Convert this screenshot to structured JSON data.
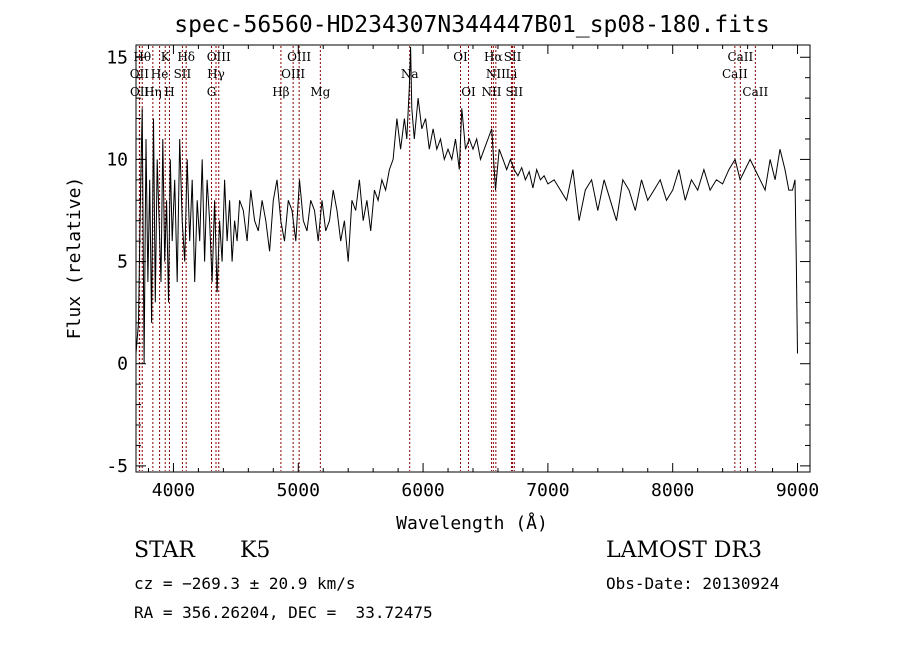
{
  "chart_data": {
    "type": "line",
    "title": "spec-56560-HD234307N344447B01_sp08-180.fits",
    "xlabel": "Wavelength (Å)",
    "ylabel": "Flux (relative)",
    "xlim": [
      3700,
      9100
    ],
    "ylim": [
      -5.3,
      15.6
    ],
    "x_ticks": [
      4000,
      5000,
      6000,
      7000,
      8000,
      9000
    ],
    "x_tick_labels": [
      "4000",
      "5000",
      "6000",
      "7000",
      "8000",
      "9000"
    ],
    "y_ticks": [
      -5,
      0,
      5,
      10,
      15
    ],
    "y_tick_labels": [
      "-5",
      "0",
      "5",
      "10",
      "15"
    ],
    "grid": false,
    "series": [
      {
        "name": "flux",
        "x": [
          3700,
          3720,
          3735,
          3750,
          3765,
          3780,
          3795,
          3810,
          3825,
          3840,
          3855,
          3870,
          3885,
          3900,
          3915,
          3930,
          3945,
          3960,
          3975,
          3990,
          4010,
          4030,
          4050,
          4070,
          4090,
          4110,
          4130,
          4150,
          4170,
          4190,
          4210,
          4230,
          4250,
          4270,
          4290,
          4310,
          4330,
          4350,
          4370,
          4390,
          4410,
          4430,
          4450,
          4470,
          4490,
          4510,
          4530,
          4560,
          4590,
          4620,
          4650,
          4680,
          4710,
          4740,
          4770,
          4800,
          4830,
          4860,
          4890,
          4920,
          4950,
          4980,
          5010,
          5040,
          5070,
          5100,
          5130,
          5160,
          5190,
          5220,
          5250,
          5280,
          5310,
          5340,
          5370,
          5400,
          5430,
          5460,
          5490,
          5520,
          5550,
          5580,
          5610,
          5640,
          5670,
          5700,
          5730,
          5760,
          5790,
          5820,
          5850,
          5870,
          5890,
          5900,
          5910,
          5930,
          5960,
          5990,
          6020,
          6050,
          6080,
          6110,
          6140,
          6170,
          6200,
          6230,
          6260,
          6290,
          6310,
          6340,
          6370,
          6400,
          6430,
          6460,
          6490,
          6520,
          6550,
          6565,
          6580,
          6610,
          6640,
          6670,
          6700,
          6730,
          6760,
          6790,
          6820,
          6850,
          6880,
          6910,
          6940,
          6970,
          7000,
          7050,
          7100,
          7150,
          7200,
          7250,
          7300,
          7350,
          7400,
          7450,
          7500,
          7550,
          7600,
          7650,
          7700,
          7750,
          7800,
          7850,
          7900,
          7950,
          8000,
          8050,
          8100,
          8150,
          8200,
          8250,
          8300,
          8350,
          8400,
          8450,
          8500,
          8540,
          8580,
          8620,
          8660,
          8700,
          8740,
          8780,
          8820,
          8860,
          8900,
          8930,
          8960,
          8980,
          8990,
          9000
        ],
        "values": [
          0.5,
          2,
          8,
          12.5,
          0,
          11,
          4,
          9,
          2,
          12,
          3,
          10,
          7,
          4,
          11,
          5,
          8,
          3,
          10,
          6,
          9,
          4,
          11,
          7,
          5,
          10,
          6,
          9,
          4,
          8,
          6,
          10,
          5,
          9,
          7,
          4,
          8,
          3.5,
          7,
          5,
          9,
          6,
          8,
          5,
          7,
          6,
          8,
          7.5,
          6,
          8.5,
          7,
          6.5,
          8,
          7,
          5.5,
          8,
          9,
          7,
          6,
          8,
          7.5,
          6,
          9,
          7,
          6.5,
          8,
          7.5,
          6,
          8,
          6.5,
          7,
          8.5,
          7.5,
          6,
          7,
          5,
          8,
          7.5,
          9,
          7,
          8,
          6.5,
          8.5,
          8,
          9,
          8.5,
          9.5,
          10,
          12,
          10.5,
          12,
          11,
          13.5,
          15.5,
          12.5,
          11,
          13,
          11.5,
          12,
          10.5,
          11.5,
          10.5,
          11,
          10,
          10.5,
          10,
          11,
          9.5,
          12.5,
          10.5,
          11,
          10.5,
          11,
          10,
          10.5,
          11,
          11.5,
          10,
          8.5,
          10.5,
          10,
          9.5,
          10,
          9.5,
          9.2,
          9.6,
          9,
          9.4,
          8.6,
          9.5,
          9,
          9.2,
          8.8,
          9,
          8.5,
          8,
          9.5,
          7,
          8.5,
          9,
          7.5,
          9,
          8,
          7,
          9,
          8.5,
          7.5,
          9,
          8,
          8.5,
          9,
          8,
          8.5,
          9.5,
          8,
          9,
          8.5,
          9.5,
          8.5,
          9,
          8.8,
          9.5,
          10,
          9,
          9.5,
          10,
          9.5,
          9,
          8.5,
          10,
          9,
          10.5,
          9.5,
          8.5,
          8.5,
          9,
          5,
          0.5
        ]
      }
    ],
    "line_markers": [
      {
        "label": "OII",
        "x": 3727,
        "row": 2
      },
      {
        "label": "OII",
        "x": 3729,
        "row": 3
      },
      {
        "label": "Hθ",
        "x": 3750,
        "row": 1
      },
      {
        "label": "Hη",
        "x": 3835,
        "row": 3
      },
      {
        "label": "He",
        "x": 3889,
        "row": 2
      },
      {
        "label": "K",
        "x": 3934,
        "row": 1
      },
      {
        "label": "H",
        "x": 3968,
        "row": 3
      },
      {
        "label": "SII",
        "x": 4072,
        "row": 2
      },
      {
        "label": "Hδ",
        "x": 4102,
        "row": 1
      },
      {
        "label": "G",
        "x": 4305,
        "row": 3
      },
      {
        "label": "Hγ",
        "x": 4341,
        "row": 2
      },
      {
        "label": "OIII",
        "x": 4363,
        "row": 1
      },
      {
        "label": "Hβ",
        "x": 4861,
        "row": 3
      },
      {
        "label": "OIII",
        "x": 4959,
        "row": 2
      },
      {
        "label": "OIII",
        "x": 5007,
        "row": 1
      },
      {
        "label": "Mg",
        "x": 5177,
        "row": 3
      },
      {
        "label": "Na",
        "x": 5893,
        "row": 2
      },
      {
        "label": "OI",
        "x": 6300,
        "row": 1
      },
      {
        "label": "OI",
        "x": 6364,
        "row": 3
      },
      {
        "label": "NII",
        "x": 6548,
        "row": 3
      },
      {
        "label": "Hα",
        "x": 6563,
        "row": 1
      },
      {
        "label": "NII",
        "x": 6583,
        "row": 2
      },
      {
        "label": "Li",
        "x": 6708,
        "row": 2
      },
      {
        "label": "SII",
        "x": 6717,
        "row": 1
      },
      {
        "label": "SII",
        "x": 6731,
        "row": 3
      },
      {
        "label": "CaII",
        "x": 8498,
        "row": 2
      },
      {
        "label": "CaII",
        "x": 8542,
        "row": 1
      },
      {
        "label": "CaII",
        "x": 8662,
        "row": 3
      }
    ]
  },
  "info": {
    "class": "STAR",
    "subclass": "K5",
    "survey": "LAMOST DR3",
    "cz": "cz = −269.3 ± 20.9 km/s",
    "obs_date": "Obs-Date: 20130924",
    "radec": "RA = 356.26204, DEC =  33.72475"
  },
  "colors": {
    "line": "#000000",
    "marker": "#8b0000"
  }
}
